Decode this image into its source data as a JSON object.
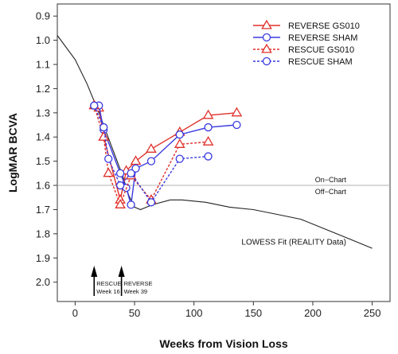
{
  "chart_data": {
    "type": "line",
    "xlabel": "Weeks from Vision Loss",
    "ylabel": "LogMAR BCVA",
    "xlim": [
      -15,
      265
    ],
    "ylim": [
      2.08,
      0.85
    ],
    "x_ticks": [
      "0",
      "50",
      "100",
      "150",
      "200",
      "250"
    ],
    "x_tick_values": [
      0,
      50,
      100,
      150,
      200,
      250
    ],
    "y_ticks": [
      "0.9",
      "1.0",
      "1.1",
      "1.2",
      "1.3",
      "1.4",
      "1.5",
      "1.6",
      "1.7",
      "1.8",
      "1.9",
      "2.0"
    ],
    "y_tick_values": [
      0.9,
      1.0,
      1.1,
      1.2,
      1.3,
      1.4,
      1.5,
      1.6,
      1.7,
      1.8,
      1.9,
      2.0
    ],
    "y_reversed": true,
    "grid": false,
    "legend_position": "top-right",
    "series": [
      {
        "name": "REVERSE GS010",
        "color": "#e0302a",
        "marker": "triangle",
        "dashed": false,
        "x": [
          16,
          20,
          24,
          38,
          43,
          51,
          64,
          88,
          112,
          136
        ],
        "y": [
          1.27,
          1.28,
          1.4,
          1.66,
          1.54,
          1.5,
          1.45,
          1.38,
          1.31,
          1.3
        ]
      },
      {
        "name": "REVERSE SHAM",
        "color": "#3a3ae0",
        "marker": "circle",
        "dashed": false,
        "x": [
          16,
          20,
          24,
          38,
          43,
          47,
          51,
          64,
          88,
          112,
          136
        ],
        "y": [
          1.27,
          1.27,
          1.37,
          1.55,
          1.61,
          1.68,
          1.53,
          1.5,
          1.39,
          1.36,
          1.35
        ]
      },
      {
        "name": "RESCUE GS010",
        "color": "#e0302a",
        "marker": "triangle",
        "dashed": true,
        "x": [
          16,
          24,
          28,
          38,
          47,
          64,
          88,
          112
        ],
        "y": [
          1.27,
          1.4,
          1.55,
          1.68,
          1.56,
          1.66,
          1.43,
          1.42
        ]
      },
      {
        "name": "RESCUE SHAM",
        "color": "#3a3ae0",
        "marker": "circle",
        "dashed": true,
        "x": [
          16,
          24,
          28,
          38,
          47,
          64,
          88,
          112
        ],
        "y": [
          1.27,
          1.36,
          1.49,
          1.6,
          1.55,
          1.67,
          1.49,
          1.48
        ]
      }
    ],
    "lowess": {
      "label": "LOWESS Fit (REALITY Data)",
      "color": "#222222",
      "x": [
        -15,
        0,
        10,
        20,
        30,
        40,
        45,
        50,
        55,
        65,
        80,
        90,
        100,
        110,
        130,
        150,
        170,
        190,
        210,
        230,
        250
      ],
      "y": [
        0.98,
        1.08,
        1.18,
        1.3,
        1.43,
        1.56,
        1.64,
        1.69,
        1.7,
        1.68,
        1.66,
        1.66,
        1.665,
        1.67,
        1.69,
        1.7,
        1.72,
        1.74,
        1.78,
        1.82,
        1.86
      ]
    },
    "reference_line": {
      "y": 1.6,
      "color": "#b0b0b0",
      "label_above": "On−Chart",
      "label_below": "Off−Chart"
    },
    "arrows": [
      {
        "x": 16,
        "label_line1": "RESCUE",
        "label_line2": "Week 16"
      },
      {
        "x": 39,
        "label_line1": "REVERSE",
        "label_line2": "Week 39"
      }
    ]
  }
}
